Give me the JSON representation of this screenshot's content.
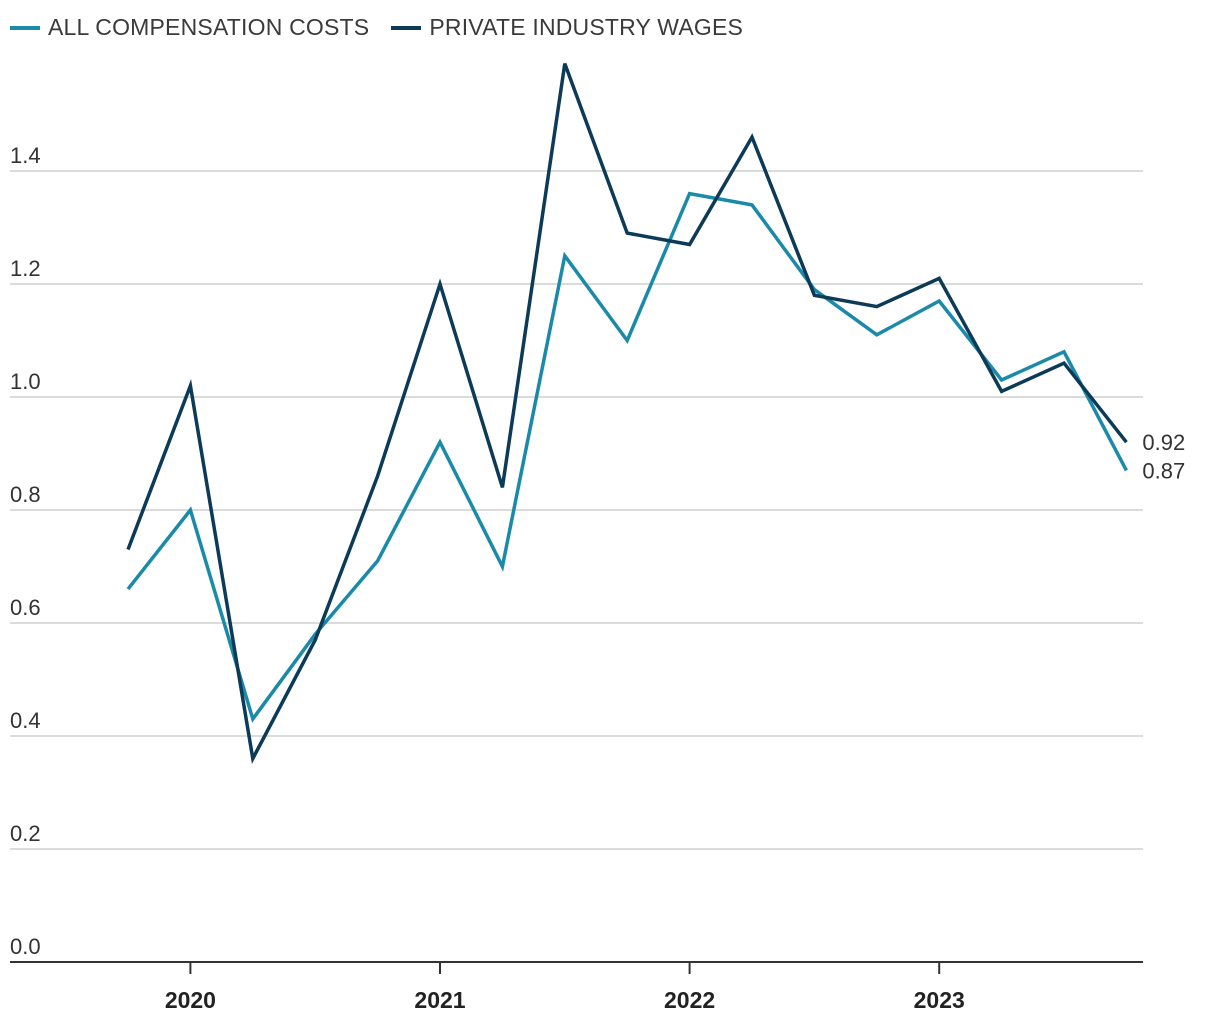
{
  "legend": {
    "items": [
      {
        "label": "ALL COMPENSATION COSTS",
        "color": "#1a8aa8"
      },
      {
        "label": "PRIVATE INDUSTRY WAGES",
        "color": "#0d3b57"
      }
    ]
  },
  "chart_data": {
    "type": "line",
    "title": "",
    "xlabel": "",
    "ylabel": "",
    "ylim": [
      0.0,
      1.6
    ],
    "yticks": [
      "0.0",
      "0.2",
      "0.4",
      "0.6",
      "0.8",
      "1.0",
      "1.2",
      "1.4"
    ],
    "x": [
      "2019 Q4",
      "2020 Q1",
      "2020 Q2",
      "2020 Q3",
      "2020 Q4",
      "2021 Q1",
      "2021 Q2",
      "2021 Q3",
      "2021 Q4",
      "2022 Q1",
      "2022 Q2",
      "2022 Q3",
      "2022 Q4",
      "2023 Q1",
      "2023 Q2",
      "2023 Q3",
      "2023 Q4"
    ],
    "year_labels": [
      {
        "label": "2020",
        "index": 1
      },
      {
        "label": "2021",
        "index": 5
      },
      {
        "label": "2022",
        "index": 9
      },
      {
        "label": "2023",
        "index": 13
      }
    ],
    "grid": true,
    "legend_position": "top-left",
    "series": [
      {
        "name": "ALL COMPENSATION COSTS",
        "color": "#1a8aa8",
        "values": [
          0.66,
          0.8,
          0.43,
          0.58,
          0.71,
          0.92,
          0.7,
          1.25,
          1.1,
          1.36,
          1.34,
          1.19,
          1.11,
          1.17,
          1.03,
          1.08,
          0.87
        ],
        "end_label": "0.87"
      },
      {
        "name": "PRIVATE INDUSTRY WAGES",
        "color": "#0d3b57",
        "values": [
          0.73,
          1.02,
          0.36,
          0.57,
          0.86,
          1.2,
          0.84,
          1.59,
          1.29,
          1.27,
          1.46,
          1.18,
          1.16,
          1.21,
          1.01,
          1.06,
          0.92
        ],
        "end_label": "0.92"
      }
    ]
  }
}
